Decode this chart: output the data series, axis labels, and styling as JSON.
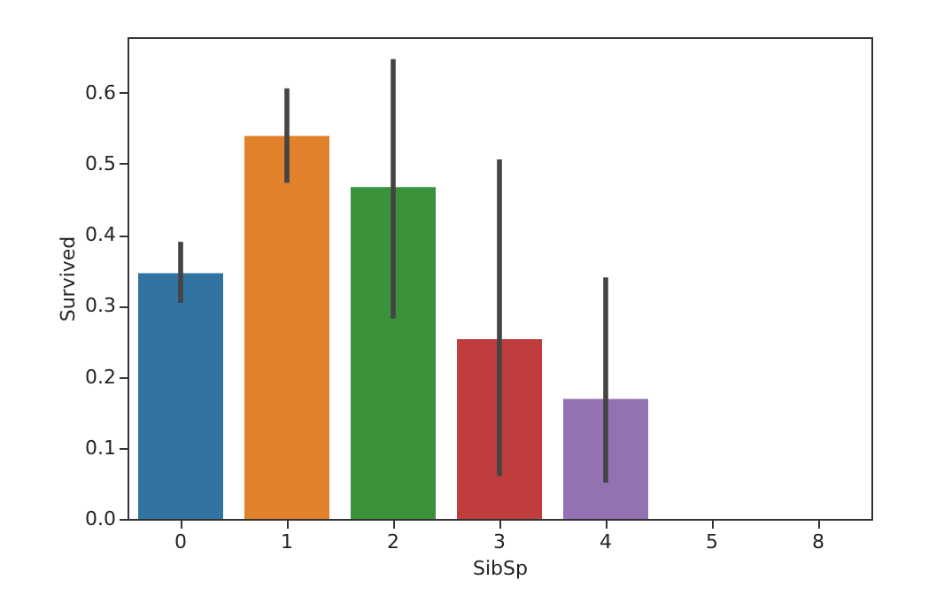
{
  "chart_data": {
    "type": "bar",
    "xlabel": "SibSp",
    "ylabel": "Survived",
    "categories": [
      "0",
      "1",
      "2",
      "3",
      "4",
      "5",
      "8"
    ],
    "values": [
      0.346,
      0.539,
      0.467,
      0.253,
      0.169,
      0,
      0
    ],
    "colors": [
      "#3274a1",
      "#e1812c",
      "#3a923a",
      "#c03d3e",
      "#9372b2",
      "#845b53",
      "#d684bd"
    ],
    "errors": [
      [
        0.304,
        0.39
      ],
      [
        0.473,
        0.606
      ],
      [
        0.282,
        0.647
      ],
      [
        0.06,
        0.506
      ],
      [
        0.051,
        0.34
      ],
      null,
      null
    ],
    "ylim": [
      0,
      0.678
    ],
    "yticks": [
      {
        "value": 0,
        "label": "0.0"
      },
      0.1,
      0.2,
      0.3,
      0.4,
      0.5,
      0.6
    ],
    "grid": false,
    "legend": false
  }
}
